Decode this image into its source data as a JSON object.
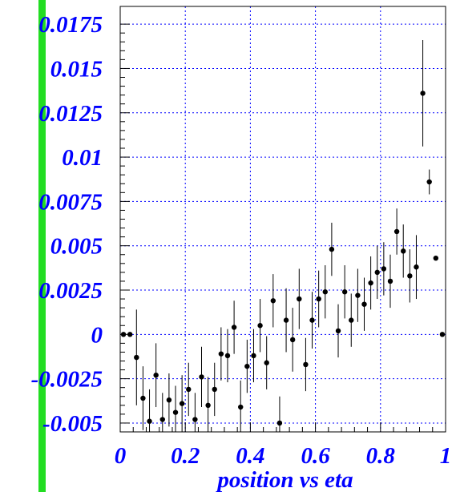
{
  "chart_data": {
    "type": "scatter",
    "title": "",
    "xlabel": "position vs eta",
    "ylabel": "",
    "xlim": [
      0,
      1
    ],
    "ylim": [
      -0.0055,
      0.0185
    ],
    "grid": true,
    "x_ticks": [
      {
        "value": 0,
        "label": "0"
      },
      {
        "value": 0.2,
        "label": "0.2"
      },
      {
        "value": 0.4,
        "label": "0.4"
      },
      {
        "value": 0.6,
        "label": "0.6"
      },
      {
        "value": 0.8,
        "label": "0.8"
      },
      {
        "value": 1,
        "label": "1"
      }
    ],
    "y_ticks": [
      {
        "value": -0.005,
        "label": "-0.005"
      },
      {
        "value": -0.0025,
        "label": "-0.0025"
      },
      {
        "value": 0,
        "label": "0"
      },
      {
        "value": 0.0025,
        "label": "0.0025"
      },
      {
        "value": 0.005,
        "label": "0.005"
      },
      {
        "value": 0.0075,
        "label": "0.0075"
      },
      {
        "value": 0.01,
        "label": "0.01"
      },
      {
        "value": 0.0125,
        "label": "0.0125"
      },
      {
        "value": 0.015,
        "label": "0.015"
      },
      {
        "value": 0.0175,
        "label": "0.0175"
      }
    ],
    "marker_color": "#000000",
    "grid_color": "#0000ff",
    "tick_color": "#0000ff",
    "side_bar_color": "#22dd22",
    "points": [
      {
        "x": 0.01,
        "y": 0.0,
        "err": 0
      },
      {
        "x": 0.03,
        "y": 0.0,
        "err": 0
      },
      {
        "x": 0.05,
        "y": -0.0013,
        "err": 0.0027
      },
      {
        "x": 0.07,
        "y": -0.0036,
        "err": 0.0018
      },
      {
        "x": 0.09,
        "y": -0.0049,
        "err": 0.0018
      },
      {
        "x": 0.11,
        "y": -0.0023,
        "err": 0.0018
      },
      {
        "x": 0.13,
        "y": -0.0048,
        "err": 0.0015
      },
      {
        "x": 0.15,
        "y": -0.0037,
        "err": 0.0015
      },
      {
        "x": 0.17,
        "y": -0.0044,
        "err": 0.0015
      },
      {
        "x": 0.19,
        "y": -0.0039,
        "err": 0.0016
      },
      {
        "x": 0.21,
        "y": -0.0031,
        "err": 0.0015
      },
      {
        "x": 0.23,
        "y": -0.0048,
        "err": 0.0015
      },
      {
        "x": 0.25,
        "y": -0.0024,
        "err": 0.0017
      },
      {
        "x": 0.27,
        "y": -0.004,
        "err": 0.0016
      },
      {
        "x": 0.29,
        "y": -0.0031,
        "err": 0.0015
      },
      {
        "x": 0.31,
        "y": -0.0011,
        "err": 0.0015
      },
      {
        "x": 0.33,
        "y": -0.0012,
        "err": 0.0015
      },
      {
        "x": 0.35,
        "y": 0.0004,
        "err": 0.0015
      },
      {
        "x": 0.37,
        "y": -0.0041,
        "err": 0.0015
      },
      {
        "x": 0.39,
        "y": -0.0018,
        "err": 0.0015
      },
      {
        "x": 0.41,
        "y": -0.0012,
        "err": 0.0015
      },
      {
        "x": 0.43,
        "y": 0.0005,
        "err": 0.0015
      },
      {
        "x": 0.45,
        "y": -0.0016,
        "err": 0.0015
      },
      {
        "x": 0.47,
        "y": 0.0019,
        "err": 0.0015
      },
      {
        "x": 0.49,
        "y": -0.005,
        "err": 0.0015
      },
      {
        "x": 0.51,
        "y": 0.0008,
        "err": 0.0018
      },
      {
        "x": 0.53,
        "y": -0.0003,
        "err": 0.0018
      },
      {
        "x": 0.55,
        "y": 0.002,
        "err": 0.0017
      },
      {
        "x": 0.57,
        "y": -0.0017,
        "err": 0.0015
      },
      {
        "x": 0.59,
        "y": 0.0008,
        "err": 0.0016
      },
      {
        "x": 0.61,
        "y": 0.002,
        "err": 0.0016
      },
      {
        "x": 0.63,
        "y": 0.0024,
        "err": 0.0015
      },
      {
        "x": 0.65,
        "y": 0.0048,
        "err": 0.0015
      },
      {
        "x": 0.67,
        "y": 0.0002,
        "err": 0.0015
      },
      {
        "x": 0.69,
        "y": 0.0024,
        "err": 0.0015
      },
      {
        "x": 0.71,
        "y": 0.0008,
        "err": 0.0015
      },
      {
        "x": 0.73,
        "y": 0.0022,
        "err": 0.0015
      },
      {
        "x": 0.75,
        "y": 0.0017,
        "err": 0.0015
      },
      {
        "x": 0.77,
        "y": 0.0029,
        "err": 0.0015
      },
      {
        "x": 0.79,
        "y": 0.0035,
        "err": 0.0015
      },
      {
        "x": 0.81,
        "y": 0.0037,
        "err": 0.0015
      },
      {
        "x": 0.83,
        "y": 0.003,
        "err": 0.0015
      },
      {
        "x": 0.85,
        "y": 0.0058,
        "err": 0.0013
      },
      {
        "x": 0.87,
        "y": 0.0047,
        "err": 0.0015
      },
      {
        "x": 0.89,
        "y": 0.0033,
        "err": 0.0015
      },
      {
        "x": 0.91,
        "y": 0.0038,
        "err": 0.0018
      },
      {
        "x": 0.93,
        "y": 0.0136,
        "err": 0.003
      },
      {
        "x": 0.95,
        "y": 0.0086,
        "err": 0.0007
      },
      {
        "x": 0.97,
        "y": 0.0043,
        "err": 0
      },
      {
        "x": 0.99,
        "y": 0.0,
        "err": 0
      }
    ]
  }
}
